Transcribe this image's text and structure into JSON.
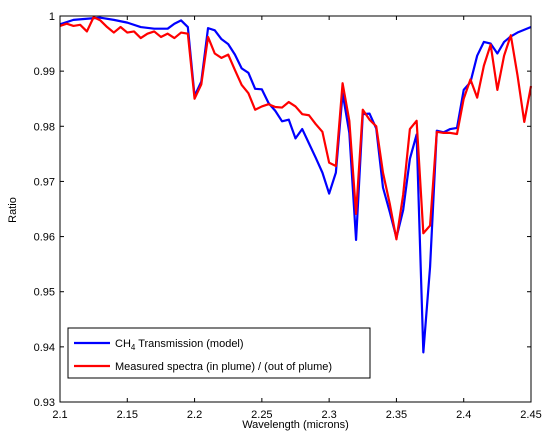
{
  "chart_data": {
    "type": "line",
    "xlabel": "Wavelength (microns)",
    "ylabel": "Ratio",
    "xlim": [
      2.1,
      2.45
    ],
    "ylim": [
      0.93,
      1.0
    ],
    "xticks": [
      "2.1",
      "2.15",
      "2.2",
      "2.25",
      "2.3",
      "2.35",
      "2.4",
      "2.45"
    ],
    "yticks": [
      "0.93",
      "0.94",
      "0.95",
      "0.96",
      "0.97",
      "0.98",
      "0.99",
      "1"
    ],
    "grid": false,
    "legend_position": "bottom-left",
    "series": [
      {
        "name": "CH4 Transmission (model)",
        "name_main": "CH",
        "name_sub": "4",
        "name_rest": " Transmission (model)",
        "color": "#0000ff",
        "x": [
          2.1,
          2.11,
          2.12,
          2.13,
          2.14,
          2.15,
          2.16,
          2.17,
          2.18,
          2.185,
          2.19,
          2.195,
          2.2,
          2.205,
          2.21,
          2.215,
          2.22,
          2.225,
          2.23,
          2.235,
          2.24,
          2.245,
          2.25,
          2.255,
          2.26,
          2.265,
          2.27,
          2.275,
          2.28,
          2.285,
          2.29,
          2.295,
          2.3,
          2.305,
          2.31,
          2.315,
          2.32,
          2.325,
          2.33,
          2.335,
          2.34,
          2.345,
          2.35,
          2.355,
          2.36,
          2.365,
          2.37,
          2.375,
          2.38,
          2.385,
          2.39,
          2.395,
          2.4,
          2.405,
          2.41,
          2.415,
          2.42,
          2.425,
          2.43,
          2.435,
          2.44,
          2.445,
          2.45
        ],
        "y": [
          0.9985,
          0.9993,
          0.9995,
          0.9997,
          0.9993,
          0.9988,
          0.998,
          0.9977,
          0.9977,
          0.9986,
          0.9992,
          0.998,
          0.9855,
          0.9881,
          0.9978,
          0.9974,
          0.9958,
          0.9949,
          0.993,
          0.9905,
          0.9897,
          0.9868,
          0.9867,
          0.9842,
          0.9828,
          0.9809,
          0.9812,
          0.9778,
          0.9795,
          0.9769,
          0.9743,
          0.9716,
          0.9678,
          0.9716,
          0.986,
          0.9788,
          0.9594,
          0.9822,
          0.9823,
          0.9796,
          0.9689,
          0.9645,
          0.9598,
          0.9648,
          0.9741,
          0.9785,
          0.939,
          0.9545,
          0.9792,
          0.9789,
          0.9795,
          0.9797,
          0.9866,
          0.988,
          0.9928,
          0.9953,
          0.995,
          0.9932,
          0.9953,
          0.9963,
          0.997,
          0.9975,
          0.998
        ]
      },
      {
        "name": "Measured spectra (in plume) / (out of plume)",
        "color": "#ff0000",
        "x": [
          2.1,
          2.105,
          2.11,
          2.115,
          2.12,
          2.125,
          2.13,
          2.135,
          2.14,
          2.145,
          2.15,
          2.155,
          2.16,
          2.165,
          2.17,
          2.175,
          2.18,
          2.185,
          2.19,
          2.195,
          2.2,
          2.205,
          2.21,
          2.215,
          2.22,
          2.225,
          2.23,
          2.235,
          2.24,
          2.245,
          2.25,
          2.255,
          2.26,
          2.265,
          2.27,
          2.275,
          2.28,
          2.285,
          2.29,
          2.295,
          2.3,
          2.305,
          2.31,
          2.315,
          2.32,
          2.325,
          2.33,
          2.335,
          2.34,
          2.345,
          2.35,
          2.355,
          2.36,
          2.365,
          2.37,
          2.375,
          2.38,
          2.385,
          2.39,
          2.395,
          2.4,
          2.405,
          2.41,
          2.415,
          2.42,
          2.425,
          2.43,
          2.435,
          2.44,
          2.445,
          2.45
        ],
        "y": [
          0.9982,
          0.9986,
          0.9982,
          0.9984,
          0.9972,
          0.9998,
          0.9992,
          0.998,
          0.997,
          0.998,
          0.997,
          0.9972,
          0.996,
          0.9968,
          0.9972,
          0.9962,
          0.9968,
          0.996,
          0.997,
          0.9968,
          0.985,
          0.9876,
          0.9962,
          0.9932,
          0.9924,
          0.993,
          0.9902,
          0.9875,
          0.986,
          0.983,
          0.9836,
          0.984,
          0.9835,
          0.9834,
          0.9844,
          0.9836,
          0.9822,
          0.982,
          0.9804,
          0.979,
          0.9734,
          0.9728,
          0.9878,
          0.981,
          0.9641,
          0.983,
          0.9812,
          0.98,
          0.9716,
          0.966,
          0.9595,
          0.9676,
          0.9795,
          0.981,
          0.9606,
          0.962,
          0.979,
          0.9788,
          0.9788,
          0.9786,
          0.985,
          0.9885,
          0.9852,
          0.991,
          0.9948,
          0.9866,
          0.9928,
          0.9965,
          0.9892,
          0.9808,
          0.9873
        ]
      }
    ]
  }
}
